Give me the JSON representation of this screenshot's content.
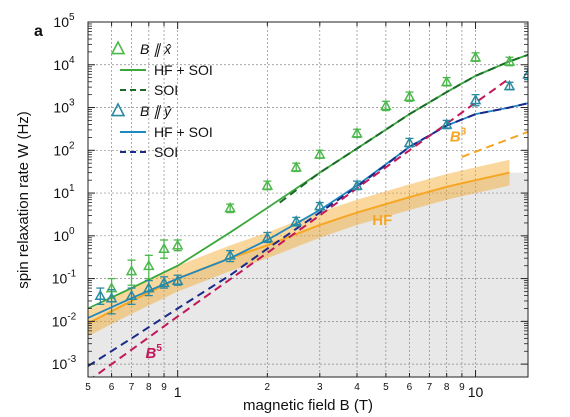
{
  "panel_label": "a",
  "chart_data": {
    "type": "line",
    "xlabel": "magnetic field B (T)",
    "ylabel": "spin relaxation rate W (Hz)",
    "x_scale": "log",
    "y_scale": "log",
    "xlim": [
      0.5,
      15
    ],
    "ylim": [
      0.0005,
      100000
    ],
    "grid": true,
    "x_major_ticks": [
      {
        "value": 1,
        "label": "1"
      },
      {
        "value": 10,
        "label": "10"
      }
    ],
    "x_minor_ticks": [
      {
        "value": 0.5,
        "label": "5"
      },
      {
        "value": 0.6,
        "label": "6"
      },
      {
        "value": 0.7,
        "label": "7"
      },
      {
        "value": 0.8,
        "label": "8"
      },
      {
        "value": 0.9,
        "label": "9"
      },
      {
        "value": 2,
        "label": "2"
      },
      {
        "value": 3,
        "label": "3"
      },
      {
        "value": 4,
        "label": "4"
      },
      {
        "value": 5,
        "label": "5"
      },
      {
        "value": 6,
        "label": "6"
      },
      {
        "value": 7,
        "label": "7"
      },
      {
        "value": 8,
        "label": "8"
      },
      {
        "value": 9,
        "label": "9"
      }
    ],
    "y_ticks": [
      {
        "value": 0.001,
        "base": "10",
        "exp": "-3"
      },
      {
        "value": 0.01,
        "base": "10",
        "exp": "-2"
      },
      {
        "value": 0.1,
        "base": "10",
        "exp": "-1"
      },
      {
        "value": 1,
        "base": "10",
        "exp": "0"
      },
      {
        "value": 10,
        "base": "10",
        "exp": "1"
      },
      {
        "value": 100,
        "base": "10",
        "exp": "2"
      },
      {
        "value": 1000,
        "base": "10",
        "exp": "3"
      },
      {
        "value": 10000,
        "base": "10",
        "exp": "4"
      },
      {
        "value": 100000,
        "base": "10",
        "exp": "5"
      }
    ],
    "legend": {
      "placement": "top-left",
      "groups": [
        {
          "marker": "triangle",
          "color": "#4cb84c",
          "label_prefix": "B ∥ ",
          "label_vec": "x̂",
          "hf_soi": "HF + SOI",
          "soi": "SOI",
          "line_color": "#3ca83c",
          "soi_color": "#1a6a2a"
        },
        {
          "marker": "triangle",
          "color": "#2a8aa0",
          "label_prefix": "B ∥ ",
          "label_vec": "ŷ",
          "hf_soi": "HF + SOI",
          "soi": "SOI",
          "line_color": "#1e88c0",
          "soi_color": "#1a2a8a"
        }
      ]
    },
    "hf_band": {
      "color": "#f5a623",
      "x": [
        0.5,
        0.7,
        1,
        1.5,
        2,
        3,
        4,
        6,
        8,
        10,
        13
      ],
      "center": [
        0.009,
        0.03,
        0.1,
        0.3,
        0.6,
        1.8,
        3.5,
        8,
        14,
        20,
        30
      ],
      "lower": [
        0.0045,
        0.015,
        0.05,
        0.15,
        0.3,
        0.9,
        1.8,
        4,
        7,
        10,
        15
      ],
      "upper": [
        0.018,
        0.06,
        0.2,
        0.6,
        1.2,
        3.6,
        7,
        16,
        28,
        40,
        60
      ]
    },
    "gray_region": {
      "x": [
        0.5,
        0.7,
        1,
        1.5,
        2,
        3,
        4,
        6,
        8,
        10,
        13
      ],
      "upper": [
        0.009,
        0.03,
        0.1,
        0.3,
        0.6,
        1.8,
        3.5,
        8,
        14,
        20,
        30
      ]
    },
    "series": [
      {
        "name": "B ∥ x̂ data",
        "kind": "points",
        "color": "#4cb84c",
        "x": [
          0.6,
          0.7,
          0.8,
          0.9,
          1.0,
          1.5,
          2.0,
          2.5,
          3.0,
          4.0,
          5.0,
          6.0,
          8.0,
          10.0,
          13.0
        ],
        "y": [
          0.06,
          0.15,
          0.2,
          0.5,
          0.6,
          4.5,
          15,
          40,
          80,
          250,
          1100,
          1800,
          4000,
          15000,
          12000
        ],
        "yerr_low": [
          0.025,
          0.08,
          0.1,
          0.2,
          0.15,
          1,
          3,
          8,
          15,
          50,
          250,
          400,
          800,
          3000,
          2500
        ],
        "yerr_high": [
          0.04,
          0.12,
          0.15,
          0.3,
          0.2,
          1,
          4,
          10,
          20,
          60,
          300,
          500,
          1000,
          4000,
          3000
        ]
      },
      {
        "name": "B ∥ x̂ HF + SOI",
        "kind": "line",
        "color": "#3ca83c",
        "x": [
          0.5,
          0.7,
          1,
          1.5,
          2,
          3,
          4,
          6,
          8,
          10,
          13,
          16
        ],
        "y": [
          0.02,
          0.06,
          0.2,
          1.2,
          4.5,
          30,
          110,
          700,
          2300,
          5500,
          12000,
          20000
        ]
      },
      {
        "name": "B ∥ x̂ SOI",
        "kind": "dashed",
        "color": "#1a6a2a",
        "x": [
          2.2,
          3,
          4,
          6,
          8,
          10,
          13,
          16
        ],
        "y": [
          6,
          30,
          110,
          700,
          2300,
          5500,
          12000,
          20000
        ]
      },
      {
        "name": "B ∥ ŷ data",
        "kind": "points",
        "color": "#2a8aa0",
        "x": [
          0.55,
          0.6,
          0.7,
          0.8,
          0.9,
          1.0,
          1.5,
          2.0,
          2.5,
          3.0,
          4.0,
          6.0,
          8.0,
          10.0,
          13.0,
          15.0
        ],
        "y": [
          0.04,
          0.035,
          0.04,
          0.06,
          0.08,
          0.09,
          0.35,
          0.9,
          2.2,
          5,
          15,
          150,
          400,
          1500,
          3200,
          6000
        ],
        "yerr_low": [
          0.015,
          0.02,
          0.015,
          0.02,
          0.02,
          0.02,
          0.1,
          0.2,
          0.5,
          1,
          3,
          30,
          80,
          400,
          600,
          1500
        ],
        "yerr_high": [
          0.02,
          0.02,
          0.02,
          0.03,
          0.03,
          0.03,
          0.1,
          0.3,
          0.5,
          1,
          4,
          40,
          100,
          500,
          700,
          2000
        ]
      },
      {
        "name": "B ∥ ŷ HF + SOI",
        "kind": "line",
        "color": "#1e88c0",
        "x": [
          0.5,
          0.7,
          1,
          1.5,
          2,
          3,
          4,
          6,
          8,
          10,
          13,
          16
        ],
        "y": [
          0.012,
          0.035,
          0.1,
          0.3,
          0.8,
          4,
          15,
          120,
          380,
          700,
          1000,
          1400
        ]
      },
      {
        "name": "B ∥ ŷ SOI",
        "kind": "dashed",
        "color": "#1a2a8a",
        "x": [
          0.5,
          0.7,
          1,
          1.5,
          2,
          3,
          4,
          6,
          8,
          10,
          13,
          16
        ],
        "y": [
          0.0009,
          0.004,
          0.02,
          0.12,
          0.5,
          3.5,
          14,
          120,
          380,
          700,
          1000,
          1400
        ]
      },
      {
        "name": "B^5 guide",
        "kind": "dashed",
        "color": "#c2185b",
        "x": [
          0.5,
          1,
          2,
          3,
          4,
          6,
          8,
          10,
          13
        ],
        "y": [
          0.0004,
          0.013,
          0.4,
          3,
          13,
          100,
          420,
          1300,
          4800
        ]
      },
      {
        "name": "B^3 guide",
        "kind": "dashed",
        "color": "#f5a623",
        "x": [
          9,
          16
        ],
        "y": [
          70,
          320
        ]
      }
    ],
    "annotations": [
      {
        "text": "HF",
        "sup": "",
        "color": "#f5a623",
        "x": 4.5,
        "y": 1.8
      },
      {
        "text": "B",
        "sup": "5",
        "color": "#c2185b",
        "x": 0.78,
        "y": 0.0014
      },
      {
        "text": "B",
        "sup": "3",
        "color": "#f5a623",
        "x": 8.2,
        "y": 160
      }
    ]
  }
}
